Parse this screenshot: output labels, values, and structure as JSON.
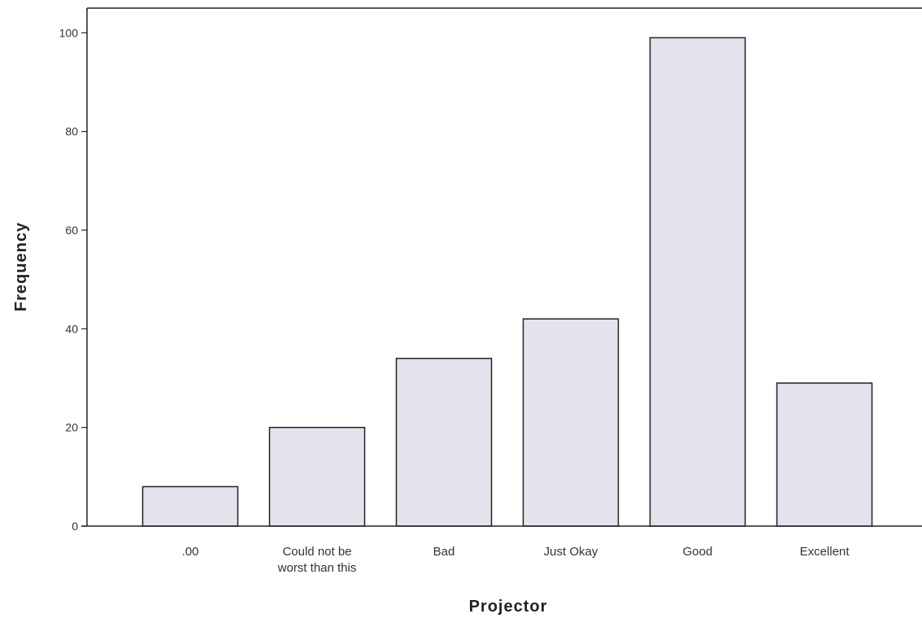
{
  "chart_data": {
    "type": "bar",
    "title": "",
    "xlabel": "Projector",
    "ylabel": "Frequency",
    "categories": [
      ".00",
      "Could not be worst than this",
      "Bad",
      "Just Okay",
      "Good",
      "Excellent"
    ],
    "category_label_lines": [
      [
        ".00"
      ],
      [
        "Could not be",
        "worst than this"
      ],
      [
        "Bad"
      ],
      [
        "Just Okay"
      ],
      [
        "Good"
      ],
      [
        "Excellent"
      ]
    ],
    "values": [
      8,
      20,
      34,
      42,
      99,
      29
    ],
    "ylim": [
      0,
      105
    ],
    "yticks": [
      0,
      20,
      40,
      60,
      80,
      100
    ],
    "grid": false,
    "legend": "none",
    "colors": {
      "bar_fill": "#e4e2ec",
      "bar_stroke": "#222222",
      "axis": "#222222",
      "frame": "#222222"
    }
  }
}
